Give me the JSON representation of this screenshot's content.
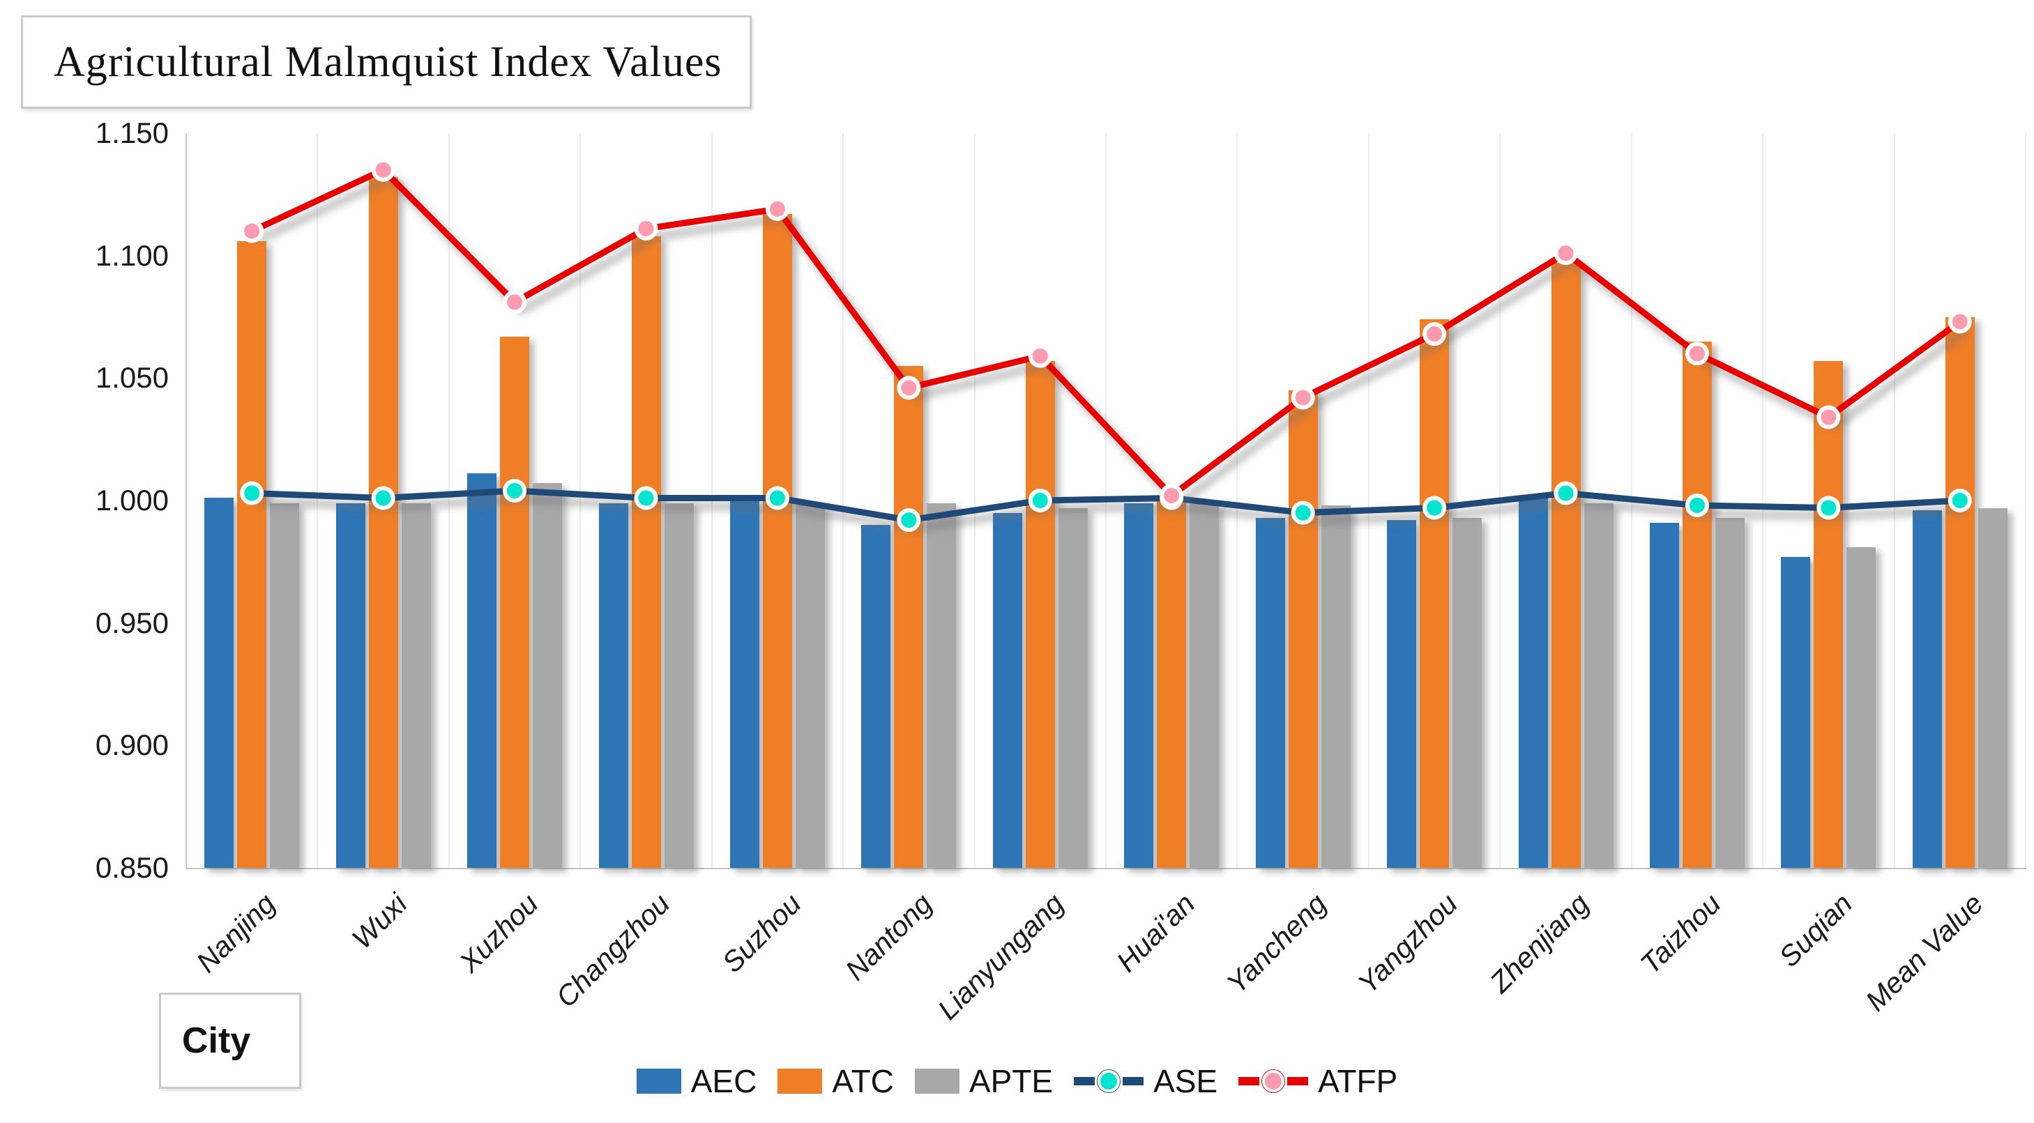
{
  "title": "Agricultural Malmquist Index Values",
  "x_axis_title": "City",
  "chart_data": {
    "type": "bar",
    "subtype": "grouped bars with two overlay line series",
    "title": "Agricultural Malmquist Index Values",
    "xlabel": "City",
    "ylabel": "",
    "ylim": [
      0.85,
      1.15
    ],
    "ytick_step": 0.05,
    "ytick_labels": [
      "1.150",
      "1.100",
      "1.050",
      "1.000",
      "0.950",
      "0.900",
      "0.850"
    ],
    "grid": "faint vertical category separators only",
    "legend_position": "bottom-center",
    "categories": [
      "Nanjing",
      "Wuxi",
      "Xuzhou",
      "Changzhou",
      "Suzhou",
      "Nantong",
      "Lianyungang",
      "Huai'an",
      "Yancheng",
      "Yangzhou",
      "Zhenjiang",
      "Taizhou",
      "Suqian",
      "Mean Value"
    ],
    "series": [
      {
        "name": "AEC",
        "type": "bar",
        "color": "#2E75B6",
        "values": [
          1.001,
          0.999,
          1.011,
          0.999,
          1.0,
          0.99,
          0.995,
          0.999,
          0.993,
          0.992,
          1.002,
          0.991,
          0.977,
          0.996
        ]
      },
      {
        "name": "ATC",
        "type": "bar",
        "color": "#F07E26",
        "values": [
          1.106,
          1.132,
          1.067,
          1.108,
          1.117,
          1.055,
          1.057,
          1.0,
          1.045,
          1.074,
          1.097,
          1.065,
          1.057,
          1.075
        ]
      },
      {
        "name": "APTE",
        "type": "bar",
        "color": "#A8A8A8",
        "values": [
          0.999,
          0.999,
          1.007,
          0.999,
          0.999,
          0.999,
          0.997,
          0.999,
          0.998,
          0.993,
          0.999,
          0.993,
          0.981,
          0.997
        ]
      },
      {
        "name": "ASE",
        "type": "line",
        "color": "#1F4977",
        "marker_color": "#00E5CF",
        "values": [
          1.003,
          1.001,
          1.004,
          1.001,
          1.001,
          0.992,
          1.0,
          1.001,
          0.995,
          0.997,
          1.003,
          0.998,
          0.997,
          1.0
        ]
      },
      {
        "name": "ATFP",
        "type": "line",
        "color": "#E60000",
        "marker_color": "#FF9BB0",
        "values": [
          1.11,
          1.135,
          1.081,
          1.111,
          1.119,
          1.046,
          1.059,
          1.002,
          1.042,
          1.068,
          1.101,
          1.06,
          1.034,
          1.073
        ]
      }
    ]
  },
  "layout_colors": {
    "axis_line": "#c6c6c6",
    "gridline": "#ececec",
    "text": "#1a1a1a"
  }
}
